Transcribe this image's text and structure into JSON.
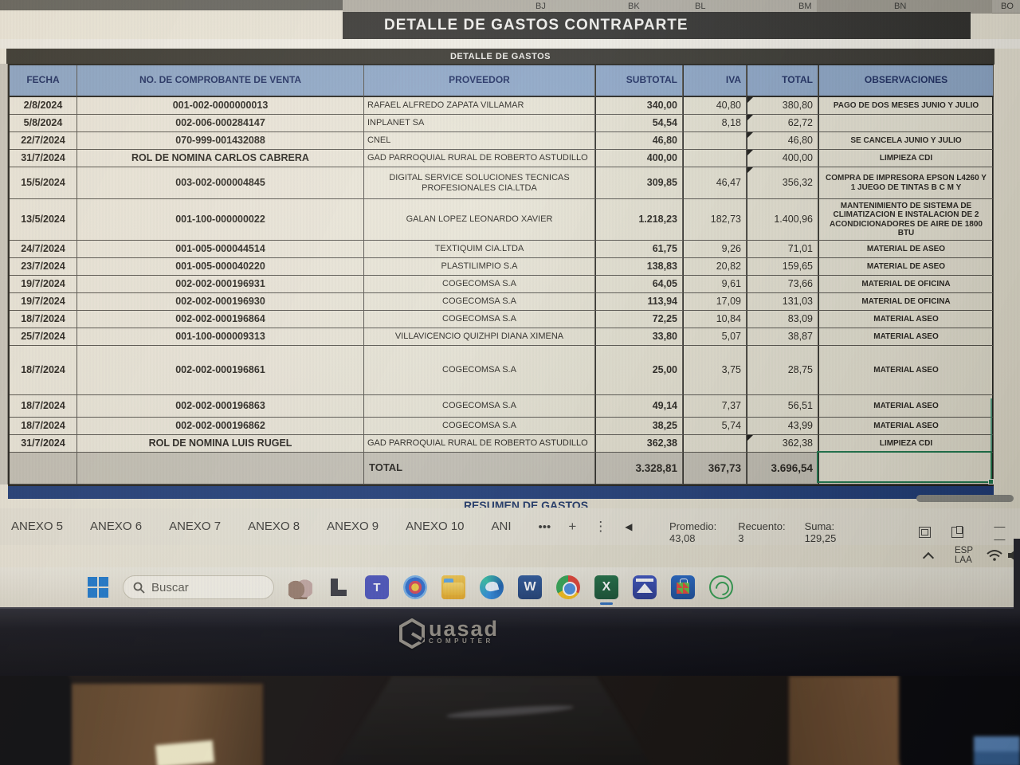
{
  "colors": {
    "header_blue": "#8ca6c6",
    "title_bar_dark": "#2f2e2b",
    "navy_section_bar": "#1f3c78",
    "selection_green": "#1f7a4d",
    "excel_green": "#1e6e42"
  },
  "spreadsheet": {
    "column_letters": [
      "BJ",
      "BK",
      "BL",
      "BM",
      "BN",
      "BO"
    ],
    "title": "DETALLE DE GASTOS  CONTRAPARTE",
    "subtitle": "DETALLE DE GASTOS",
    "section_below": "RESUMEN DE GASTOS",
    "columns": [
      "FECHA",
      "No. DE COMPROBANTE DE VENTA",
      "PROVEEDOR",
      "SUBTOTAL",
      "IVA",
      "TOTAL",
      "OBSERVACIONES"
    ],
    "rows": [
      {
        "fecha": "2/8/2024",
        "comprobante": "001-002-0000000013",
        "proveedor": "RAFAEL ALFREDO ZAPATA VILLAMAR",
        "subtotal": "340,00",
        "iva": "40,80",
        "total": "380,80",
        "observaciones": "PAGO DE DOS MESES JUNIO Y JULIO"
      },
      {
        "fecha": "5/8/2024",
        "comprobante": "002-006-000284147",
        "proveedor": "INPLANET SA",
        "subtotal": "54,54",
        "iva": "8,18",
        "total": "62,72",
        "observaciones": ""
      },
      {
        "fecha": "22/7/2024",
        "comprobante": "070-999-001432088",
        "proveedor": "CNEL",
        "subtotal": "46,80",
        "iva": "",
        "total": "46,80",
        "observaciones": "SE CANCELA JUNIO Y JULIO"
      },
      {
        "fecha": "31/7/2024",
        "comprobante": "ROL DE NOMINA CARLOS CABRERA",
        "proveedor": "GAD PARROQUIAL RURAL DE ROBERTO ASTUDILLO",
        "subtotal": "400,00",
        "iva": "",
        "total": "400,00",
        "observaciones": "LIMPIEZA CDI"
      },
      {
        "fecha": "15/5/2024",
        "comprobante": "003-002-000004845",
        "proveedor": "DIGITAL SERVICE SOLUCIONES TECNICAS PROFESIONALES CIA.LTDA",
        "subtotal": "309,85",
        "iva": "46,47",
        "total": "356,32",
        "observaciones": "COMPRA DE IMPRESORA EPSON L4260 Y 1 JUEGO DE TINTAS B C M Y"
      },
      {
        "fecha": "13/5/2024",
        "comprobante": "001-100-000000022",
        "proveedor": "GALAN LOPEZ LEONARDO XAVIER",
        "subtotal": "1.218,23",
        "iva": "182,73",
        "total": "1.400,96",
        "observaciones": "MANTENIMIENTO  DE SISTEMA DE CLIMATIZACION E INSTALACION DE 2 ACONDICIONADORES DE AIRE DE 1800 BTU"
      },
      {
        "fecha": "24/7/2024",
        "comprobante": "001-005-000044514",
        "proveedor": "TEXTIQUIM CIA.LTDA",
        "subtotal": "61,75",
        "iva": "9,26",
        "total": "71,01",
        "observaciones": "MATERIAL DE ASEO"
      },
      {
        "fecha": "23/7/2024",
        "comprobante": "001-005-000040220",
        "proveedor": "PLASTILIMPIO S.A",
        "subtotal": "138,83",
        "iva": "20,82",
        "total": "159,65",
        "observaciones": "MATERIAL DE ASEO"
      },
      {
        "fecha": "19/7/2024",
        "comprobante": "002-002-000196931",
        "proveedor": "COGECOMSA S.A",
        "subtotal": "64,05",
        "iva": "9,61",
        "total": "73,66",
        "observaciones": "MATERIAL DE OFICINA"
      },
      {
        "fecha": "19/7/2024",
        "comprobante": "002-002-000196930",
        "proveedor": "COGECOMSA S.A",
        "subtotal": "113,94",
        "iva": "17,09",
        "total": "131,03",
        "observaciones": "MATERIAL DE OFICINA"
      },
      {
        "fecha": "18/7/2024",
        "comprobante": "002-002-000196864",
        "proveedor": "COGECOMSA S.A",
        "subtotal": "72,25",
        "iva": "10,84",
        "total": "83,09",
        "observaciones": "MATERIAL ASEO"
      },
      {
        "fecha": "25/7/2024",
        "comprobante": "001-100-000009313",
        "proveedor": "VILLAVICENCIO QUIZHPI DIANA XIMENA",
        "subtotal": "33,80",
        "iva": "5,07",
        "total": "38,87",
        "observaciones": "MATERIAL ASEO"
      },
      {
        "fecha": "18/7/2024",
        "comprobante": "002-002-000196861",
        "proveedor": "COGECOMSA S.A",
        "subtotal": "25,00",
        "iva": "3,75",
        "total": "28,75",
        "observaciones": "MATERIAL ASEO"
      },
      {
        "fecha": "18/7/2024",
        "comprobante": "002-002-000196863",
        "proveedor": "COGECOMSA S.A",
        "subtotal": "49,14",
        "iva": "7,37",
        "total": "56,51",
        "observaciones": "MATERIAL ASEO"
      },
      {
        "fecha": "18/7/2024",
        "comprobante": "002-002-000196862",
        "proveedor": "COGECOMSA S.A",
        "subtotal": "38,25",
        "iva": "5,74",
        "total": "43,99",
        "observaciones": "MATERIAL ASEO"
      },
      {
        "fecha": "31/7/2024",
        "comprobante": "ROL DE NOMINA LUIS RUGEL",
        "proveedor": "GAD PARROQUIAL RURAL DE ROBERTO ASTUDILLO",
        "subtotal": "362,38",
        "iva": "",
        "total": "362,38",
        "observaciones": "LIMPIEZA CDI"
      }
    ],
    "total_row": {
      "label": "TOTAL",
      "subtotal": "3.328,81",
      "iva": "367,73",
      "total": "3.696,54"
    }
  },
  "sheet_tabs": {
    "tabs": [
      "ANEXO 5",
      "ANEXO 6",
      "ANEXO 7",
      "ANEXO 8",
      "ANEXO 9",
      "ANEXO 10",
      "ANI"
    ],
    "overflow_ellipsis": "•••",
    "add_label": "+",
    "menu_glyph": "⋮",
    "scroll_glyph": "◀"
  },
  "status_bar": {
    "promedio": "Promedio: 43,08",
    "recuento": "Recuento: 3",
    "suma": "Suma: 129,25",
    "zoom_dashes": "—  —"
  },
  "system_tray": {
    "lang_line1": "ESP",
    "lang_line2": "LAA"
  },
  "taskbar": {
    "search_placeholder": "Buscar",
    "icon_names": [
      "start",
      "search",
      "elephants",
      "black-corner",
      "teams",
      "browser-circle",
      "file-explorer",
      "edge",
      "word",
      "chrome",
      "excel",
      "photo-viewer",
      "microsoft-store",
      "whatsapp"
    ],
    "glyphs": {
      "teams": "T",
      "word": "W",
      "excel": "X"
    }
  },
  "monitor": {
    "brand_name": "uasad",
    "brand_sub": "COMPUTER"
  }
}
